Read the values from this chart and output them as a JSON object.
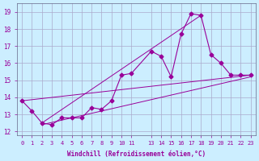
{
  "xlabel": "Windchill (Refroidissement éolien,°C)",
  "ylabel": "",
  "background_color": "#cceeff",
  "grid_color": "#aaaacc",
  "line_color": "#990099",
  "xlim": [
    -0.5,
    23.5
  ],
  "ylim": [
    11.8,
    19.5
  ],
  "x_ticks": [
    0,
    1,
    2,
    3,
    4,
    5,
    6,
    7,
    8,
    9,
    10,
    11,
    13,
    14,
    15,
    16,
    17,
    18,
    19,
    20,
    21,
    22,
    23
  ],
  "y_ticks": [
    12,
    13,
    14,
    15,
    16,
    17,
    18,
    19
  ],
  "series": [
    [
      0,
      13.8
    ],
    [
      1,
      13.2
    ],
    [
      2,
      12.5
    ],
    [
      3,
      12.4
    ],
    [
      4,
      12.8
    ],
    [
      5,
      12.8
    ],
    [
      6,
      12.8
    ],
    [
      7,
      13.4
    ],
    [
      8,
      13.3
    ],
    [
      9,
      13.8
    ],
    [
      10,
      15.3
    ],
    [
      11,
      15.4
    ],
    [
      13,
      16.7
    ],
    [
      14,
      16.4
    ],
    [
      15,
      15.2
    ],
    [
      16,
      17.7
    ],
    [
      17,
      18.9
    ],
    [
      18,
      18.8
    ],
    [
      19,
      16.5
    ],
    [
      20,
      16.0
    ],
    [
      21,
      15.3
    ],
    [
      22,
      15.3
    ],
    [
      23,
      15.3
    ]
  ],
  "line2": [
    [
      0,
      13.8
    ],
    [
      23,
      15.3
    ]
  ],
  "line3": [
    [
      2,
      12.4
    ],
    [
      23,
      15.2
    ]
  ],
  "line4": [
    [
      2,
      12.5
    ],
    [
      18,
      18.8
    ]
  ]
}
